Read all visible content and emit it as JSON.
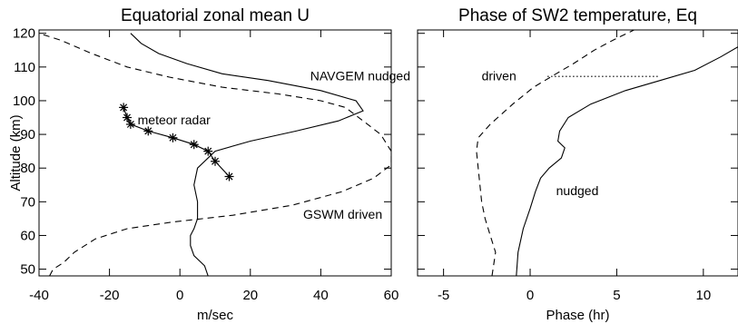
{
  "chart_data": [
    {
      "type": "line",
      "title": "Equatorial zonal mean U",
      "xlabel": "m/sec",
      "ylabel": "Altitude (km)",
      "xlim": [
        -40,
        60
      ],
      "ylim": [
        48,
        121
      ],
      "xticks": [
        -40,
        -20,
        0,
        20,
        40,
        60
      ],
      "yticks": [
        50,
        60,
        70,
        80,
        90,
        100,
        110,
        120
      ],
      "grid": false,
      "series": [
        {
          "style": "solid",
          "points": [
            [
              8,
              48
            ],
            [
              7,
              51
            ],
            [
              4,
              54
            ],
            [
              3,
              57
            ],
            [
              3,
              60
            ],
            [
              4,
              62
            ],
            [
              5,
              65
            ],
            [
              5,
              70
            ],
            [
              4,
              75
            ],
            [
              5,
              80
            ],
            [
              10,
              85
            ],
            [
              20,
              88
            ],
            [
              33,
              91
            ],
            [
              45,
              94
            ],
            [
              52,
              97
            ],
            [
              50,
              100
            ],
            [
              40,
              103
            ],
            [
              25,
              106
            ],
            [
              12,
              108
            ],
            [
              2,
              111
            ],
            [
              -6,
              114
            ],
            [
              -11,
              117
            ],
            [
              -14,
              120
            ]
          ]
        },
        {
          "style": "dashed",
          "points": [
            [
              -37,
              48
            ],
            [
              -36,
              50
            ],
            [
              -33,
              52
            ],
            [
              -30,
              55
            ],
            [
              -24,
              59
            ],
            [
              -15,
              62
            ],
            [
              -2,
              64
            ],
            [
              15,
              66
            ],
            [
              32,
              69
            ],
            [
              46,
              73
            ],
            [
              55,
              77
            ],
            [
              60,
              81
            ],
            [
              60,
              85
            ],
            [
              57,
              90
            ],
            [
              52,
              94
            ],
            [
              47,
              98
            ],
            [
              40,
              100
            ],
            [
              28,
              102
            ],
            [
              12,
              104
            ],
            [
              -3,
              107
            ],
            [
              -15,
              110
            ],
            [
              -25,
              114
            ],
            [
              -34,
              118
            ],
            [
              -40,
              120
            ]
          ]
        },
        {
          "style": "solid-asterisk",
          "points": [
            [
              -16,
              98
            ],
            [
              -15,
              95
            ],
            [
              -14,
              93
            ],
            [
              -9,
              91
            ],
            [
              -2,
              89
            ],
            [
              4,
              87
            ],
            [
              8,
              85
            ],
            [
              10,
              82
            ],
            [
              14,
              77.5
            ]
          ]
        }
      ],
      "annotations": [
        {
          "text": "NAVGEM nudged",
          "x": 37,
          "y": 106
        },
        {
          "text": "meteor radar",
          "x": -12,
          "y": 93
        },
        {
          "text": "GSWM driven",
          "x": 35,
          "y": 65
        }
      ]
    },
    {
      "type": "line",
      "title": "Phase of SW2 temperature, Eq",
      "xlabel": "Phase (hr)",
      "ylabel": "",
      "xlim": [
        -6.5,
        12
      ],
      "ylim": [
        48,
        121
      ],
      "xticks": [
        -5,
        0,
        5,
        10
      ],
      "yticks": [
        50,
        60,
        70,
        80,
        90,
        100,
        110,
        120
      ],
      "grid": false,
      "series": [
        {
          "style": "solid",
          "points": [
            [
              -0.8,
              48
            ],
            [
              -0.7,
              55
            ],
            [
              -0.4,
              62
            ],
            [
              0.0,
              68
            ],
            [
              0.3,
              73
            ],
            [
              0.6,
              77
            ],
            [
              1.1,
              80
            ],
            [
              1.8,
              83
            ],
            [
              2.0,
              86
            ],
            [
              1.6,
              88
            ],
            [
              1.7,
              91
            ],
            [
              2.2,
              95
            ],
            [
              3.5,
              99
            ],
            [
              5.5,
              103
            ],
            [
              7.5,
              106
            ],
            [
              9.5,
              109
            ],
            [
              11,
              113
            ],
            [
              12,
              116
            ]
          ]
        },
        {
          "style": "dashed",
          "points": [
            [
              -2.2,
              48
            ],
            [
              -2.0,
              55
            ],
            [
              -2.3,
              60
            ],
            [
              -2.6,
              65
            ],
            [
              -2.8,
              70
            ],
            [
              -2.9,
              75
            ],
            [
              -3.0,
              80
            ],
            [
              -3.1,
              85
            ],
            [
              -3.0,
              89
            ],
            [
              -2.3,
              93
            ],
            [
              -1.0,
              99
            ],
            [
              0.2,
              104
            ],
            [
              1.5,
              108
            ],
            [
              2.5,
              111
            ],
            [
              3.7,
              115
            ],
            [
              4.8,
              118
            ],
            [
              6.0,
              121
            ]
          ]
        },
        {
          "style": "dotted",
          "points": [
            [
              1.0,
              107.2
            ],
            [
              7.5,
              107.2
            ]
          ]
        }
      ],
      "annotations": [
        {
          "text": "driven",
          "x": -2.8,
          "y": 106
        },
        {
          "text": "nudged",
          "x": 1.5,
          "y": 72
        }
      ]
    }
  ]
}
